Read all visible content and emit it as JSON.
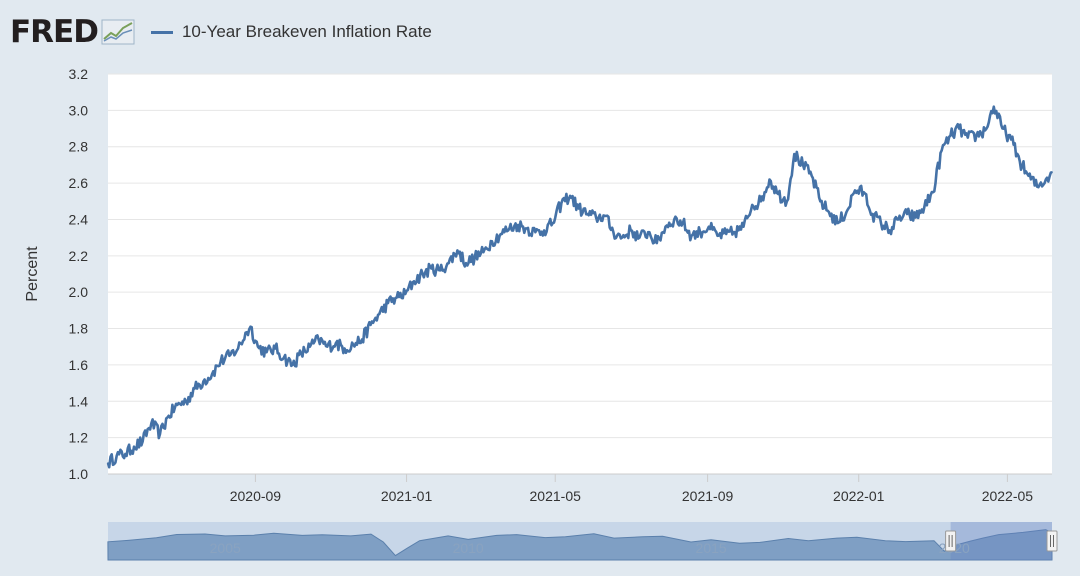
{
  "header": {
    "logo_text": "FRED",
    "series_label": "10-Year Breakeven Inflation Rate"
  },
  "colors": {
    "line": "#4572a7",
    "background": "#e1e9f0",
    "plot_bg": "#ffffff",
    "navigator_fill": "#7f9fc4",
    "navigator_mask": "#c7d6e8"
  },
  "chart_data": {
    "type": "line",
    "title": "",
    "ylabel": "Percent",
    "xlabel": "",
    "ylim": [
      1.0,
      3.2
    ],
    "yticks": [
      1.0,
      1.2,
      1.4,
      1.6,
      1.8,
      2.0,
      2.2,
      2.4,
      2.6,
      2.8,
      3.0,
      3.2
    ],
    "x_range": [
      "2020-05-05",
      "2022-06-06"
    ],
    "xticks": [
      "2020-09",
      "2021-01",
      "2021-05",
      "2021-09",
      "2022-01",
      "2022-05"
    ],
    "grid": true,
    "series": [
      {
        "name": "10-Year Breakeven Inflation Rate",
        "points": [
          [
            "2020-05-05",
            1.06
          ],
          [
            "2020-05-12",
            1.1
          ],
          [
            "2020-05-19",
            1.11
          ],
          [
            "2020-05-26",
            1.15
          ],
          [
            "2020-06-02",
            1.18
          ],
          [
            "2020-06-09",
            1.28
          ],
          [
            "2020-06-16",
            1.22
          ],
          [
            "2020-06-23",
            1.32
          ],
          [
            "2020-06-30",
            1.38
          ],
          [
            "2020-07-07",
            1.4
          ],
          [
            "2020-07-14",
            1.47
          ],
          [
            "2020-07-21",
            1.51
          ],
          [
            "2020-07-28",
            1.55
          ],
          [
            "2020-08-04",
            1.62
          ],
          [
            "2020-08-11",
            1.65
          ],
          [
            "2020-08-18",
            1.69
          ],
          [
            "2020-08-25",
            1.78
          ],
          [
            "2020-08-28",
            1.81
          ],
          [
            "2020-09-03",
            1.7
          ],
          [
            "2020-09-10",
            1.67
          ],
          [
            "2020-09-17",
            1.69
          ],
          [
            "2020-09-24",
            1.64
          ],
          [
            "2020-10-01",
            1.6
          ],
          [
            "2020-10-08",
            1.66
          ],
          [
            "2020-10-15",
            1.7
          ],
          [
            "2020-10-22",
            1.74
          ],
          [
            "2020-10-29",
            1.7
          ],
          [
            "2020-11-05",
            1.72
          ],
          [
            "2020-11-12",
            1.69
          ],
          [
            "2020-11-19",
            1.71
          ],
          [
            "2020-11-26",
            1.74
          ],
          [
            "2020-12-03",
            1.82
          ],
          [
            "2020-12-10",
            1.88
          ],
          [
            "2020-12-17",
            1.94
          ],
          [
            "2020-12-24",
            1.97
          ],
          [
            "2020-12-31",
            1.99
          ],
          [
            "2021-01-07",
            2.06
          ],
          [
            "2021-01-14",
            2.1
          ],
          [
            "2021-01-21",
            2.13
          ],
          [
            "2021-01-28",
            2.12
          ],
          [
            "2021-02-04",
            2.16
          ],
          [
            "2021-02-11",
            2.23
          ],
          [
            "2021-02-18",
            2.16
          ],
          [
            "2021-02-25",
            2.19
          ],
          [
            "2021-03-04",
            2.22
          ],
          [
            "2021-03-11",
            2.28
          ],
          [
            "2021-03-18",
            2.32
          ],
          [
            "2021-03-25",
            2.35
          ],
          [
            "2021-04-01",
            2.37
          ],
          [
            "2021-04-08",
            2.35
          ],
          [
            "2021-04-15",
            2.33
          ],
          [
            "2021-04-22",
            2.34
          ],
          [
            "2021-04-29",
            2.38
          ],
          [
            "2021-05-06",
            2.49
          ],
          [
            "2021-05-13",
            2.53
          ],
          [
            "2021-05-20",
            2.46
          ],
          [
            "2021-05-27",
            2.43
          ],
          [
            "2021-06-03",
            2.41
          ],
          [
            "2021-06-10",
            2.42
          ],
          [
            "2021-06-17",
            2.33
          ],
          [
            "2021-06-24",
            2.3
          ],
          [
            "2021-07-01",
            2.34
          ],
          [
            "2021-07-08",
            2.3
          ],
          [
            "2021-07-15",
            2.33
          ],
          [
            "2021-07-22",
            2.27
          ],
          [
            "2021-07-29",
            2.36
          ],
          [
            "2021-08-05",
            2.4
          ],
          [
            "2021-08-12",
            2.38
          ],
          [
            "2021-08-19",
            2.31
          ],
          [
            "2021-08-26",
            2.33
          ],
          [
            "2021-09-02",
            2.36
          ],
          [
            "2021-09-09",
            2.31
          ],
          [
            "2021-09-16",
            2.32
          ],
          [
            "2021-09-23",
            2.33
          ],
          [
            "2021-09-30",
            2.36
          ],
          [
            "2021-10-07",
            2.48
          ],
          [
            "2021-10-14",
            2.5
          ],
          [
            "2021-10-21",
            2.62
          ],
          [
            "2021-10-28",
            2.54
          ],
          [
            "2021-11-04",
            2.5
          ],
          [
            "2021-11-10",
            2.76
          ],
          [
            "2021-11-17",
            2.7
          ],
          [
            "2021-11-24",
            2.64
          ],
          [
            "2021-12-01",
            2.5
          ],
          [
            "2021-12-08",
            2.44
          ],
          [
            "2021-12-15",
            2.38
          ],
          [
            "2021-12-22",
            2.44
          ],
          [
            "2021-12-29",
            2.56
          ],
          [
            "2022-01-05",
            2.55
          ],
          [
            "2022-01-12",
            2.43
          ],
          [
            "2022-01-19",
            2.38
          ],
          [
            "2022-01-26",
            2.34
          ],
          [
            "2022-02-02",
            2.4
          ],
          [
            "2022-02-09",
            2.43
          ],
          [
            "2022-02-16",
            2.41
          ],
          [
            "2022-02-23",
            2.47
          ],
          [
            "2022-03-02",
            2.55
          ],
          [
            "2022-03-09",
            2.78
          ],
          [
            "2022-03-16",
            2.86
          ],
          [
            "2022-03-23",
            2.9
          ],
          [
            "2022-03-30",
            2.85
          ],
          [
            "2022-04-06",
            2.86
          ],
          [
            "2022-04-13",
            2.89
          ],
          [
            "2022-04-20",
            3.02
          ],
          [
            "2022-04-27",
            2.9
          ],
          [
            "2022-05-04",
            2.84
          ],
          [
            "2022-05-11",
            2.72
          ],
          [
            "2022-05-18",
            2.64
          ],
          [
            "2022-05-25",
            2.58
          ],
          [
            "2022-06-01",
            2.62
          ],
          [
            "2022-06-06",
            2.66
          ]
        ]
      }
    ],
    "navigator": {
      "tick_labels": [
        "2005",
        "2010",
        "2015",
        "2020"
      ],
      "range": [
        "2003-01-02",
        "2022-06-06"
      ],
      "selected_range": [
        "2020-05-05",
        "2022-06-06"
      ],
      "points": [
        [
          "2003-01-01",
          1.62
        ],
        [
          "2003-06-01",
          1.78
        ],
        [
          "2004-01-01",
          2.08
        ],
        [
          "2004-06-01",
          2.46
        ],
        [
          "2005-01-01",
          2.52
        ],
        [
          "2005-06-01",
          2.3
        ],
        [
          "2006-01-01",
          2.38
        ],
        [
          "2006-06-01",
          2.6
        ],
        [
          "2007-01-01",
          2.36
        ],
        [
          "2007-06-01",
          2.42
        ],
        [
          "2008-01-01",
          2.3
        ],
        [
          "2008-06-01",
          2.5
        ],
        [
          "2008-09-01",
          1.6
        ],
        [
          "2008-12-01",
          0.04
        ],
        [
          "2009-03-01",
          0.9
        ],
        [
          "2009-06-01",
          1.75
        ],
        [
          "2010-01-01",
          2.3
        ],
        [
          "2010-06-01",
          1.9
        ],
        [
          "2011-01-01",
          2.35
        ],
        [
          "2011-06-01",
          2.45
        ],
        [
          "2012-01-01",
          2.1
        ],
        [
          "2012-06-01",
          2.2
        ],
        [
          "2013-01-01",
          2.55
        ],
        [
          "2013-06-01",
          2.05
        ],
        [
          "2014-01-01",
          2.2
        ],
        [
          "2014-06-01",
          2.25
        ],
        [
          "2015-01-01",
          1.6
        ],
        [
          "2015-06-01",
          1.85
        ],
        [
          "2016-01-01",
          1.45
        ],
        [
          "2016-06-01",
          1.55
        ],
        [
          "2017-01-01",
          2.0
        ],
        [
          "2017-06-01",
          1.75
        ],
        [
          "2018-01-01",
          2.05
        ],
        [
          "2018-06-01",
          2.15
        ],
        [
          "2019-01-01",
          1.75
        ],
        [
          "2019-06-01",
          1.65
        ],
        [
          "2020-01-01",
          1.75
        ],
        [
          "2020-03-19",
          0.55
        ],
        [
          "2020-06-01",
          1.2
        ],
        [
          "2020-10-01",
          1.7
        ],
        [
          "2021-01-01",
          2.05
        ],
        [
          "2021-05-01",
          2.45
        ],
        [
          "2021-11-01",
          2.7
        ],
        [
          "2022-04-20",
          3.02
        ],
        [
          "2022-06-06",
          2.66
        ]
      ]
    }
  }
}
